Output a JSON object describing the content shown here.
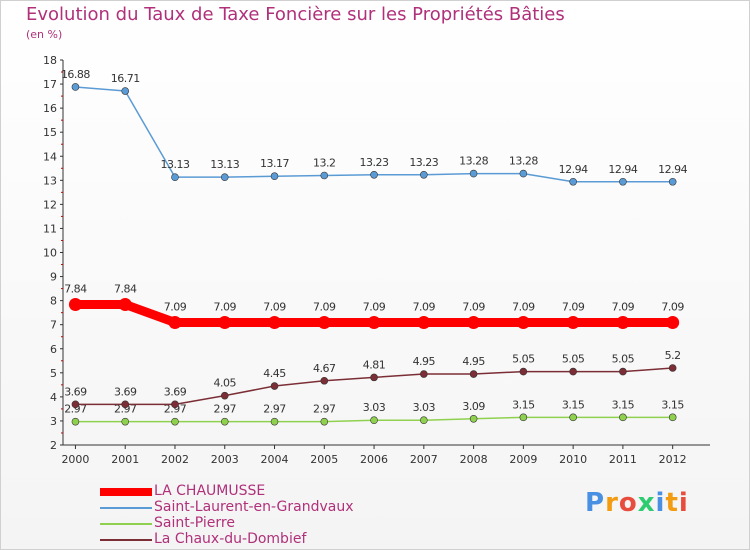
{
  "title": "Evolution du Taux de Taxe Foncière sur les Propriétés Bâties",
  "subtitle": "(en %)",
  "chart_data": {
    "type": "line",
    "title": "Evolution du Taux de Taxe Foncière sur les Propriétés Bâties",
    "ylabel": "(en %)",
    "xlabel": "",
    "x": [
      "2000",
      "2001",
      "2002",
      "2003",
      "2004",
      "2005",
      "2006",
      "2007",
      "2008",
      "2009",
      "2010",
      "2011",
      "2012"
    ],
    "ylim": [
      2,
      18
    ],
    "yticks": [
      2,
      3,
      4,
      5,
      6,
      7,
      8,
      9,
      10,
      11,
      12,
      13,
      14,
      15,
      16,
      17,
      18
    ],
    "grid": false,
    "legend_position": "bottom-left",
    "series": [
      {
        "name": "LA CHAUMUSSE",
        "color": "#ff0000",
        "values": [
          7.84,
          7.84,
          7.09,
          7.09,
          7.09,
          7.09,
          7.09,
          7.09,
          7.09,
          7.09,
          7.09,
          7.09,
          7.09
        ],
        "labels": [
          "7.84",
          "7.84",
          "7.09",
          "7.09",
          "7.09",
          "7.09",
          "7.09",
          "7.09",
          "7.09",
          "7.09",
          "7.09",
          "7.09",
          "7.09"
        ],
        "emphasis": true
      },
      {
        "name": "Saint-Laurent-en-Grandvaux",
        "color": "#5b9bd5",
        "values": [
          16.88,
          16.71,
          13.13,
          13.13,
          13.17,
          13.2,
          13.23,
          13.23,
          13.28,
          13.28,
          12.94,
          12.94,
          12.94
        ],
        "labels": [
          "16.88",
          "16.71",
          "13.13",
          "13.13",
          "13.17",
          "13.2",
          "13.23",
          "13.23",
          "13.28",
          "13.28",
          "12.94",
          "12.94",
          "12.94"
        ]
      },
      {
        "name": "Saint-Pierre",
        "color": "#8fd14f",
        "values": [
          2.97,
          2.97,
          2.97,
          2.97,
          2.97,
          2.97,
          3.03,
          3.03,
          3.09,
          3.15,
          3.15,
          3.15,
          3.15
        ],
        "labels": [
          "2.97",
          "2.97",
          "2.97",
          "2.97",
          "2.97",
          "2.97",
          "3.03",
          "3.03",
          "3.09",
          "3.15",
          "3.15",
          "3.15",
          "3.15"
        ]
      },
      {
        "name": "La Chaux-du-Dombief",
        "color": "#7b2e35",
        "values": [
          3.69,
          3.69,
          3.69,
          4.05,
          4.45,
          4.67,
          4.81,
          4.95,
          4.95,
          5.05,
          5.05,
          5.05,
          5.2
        ],
        "labels": [
          "3.69",
          "3.69",
          "3.69",
          "4.05",
          "4.45",
          "4.67",
          "4.81",
          "4.95",
          "4.95",
          "5.05",
          "5.05",
          "5.05",
          "5.2"
        ]
      }
    ]
  },
  "logo": {
    "letters": [
      "P",
      "r",
      "o",
      "x",
      "i",
      "t",
      "i"
    ],
    "colors": [
      "#4a90e2",
      "#f39c12",
      "#e74c3c",
      "#2ecc71",
      "#4a90e2",
      "#f39c12",
      "#e74c3c"
    ]
  }
}
